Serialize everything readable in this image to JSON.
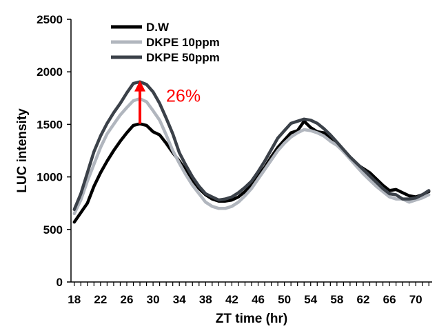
{
  "chart_data": {
    "type": "line",
    "title": "",
    "xlabel": "ZT time (hr)",
    "ylabel": "LUC intensity",
    "xlim": [
      17.5,
      72.5
    ],
    "ylim": [
      0,
      2500
    ],
    "x_ticks": [
      18,
      22,
      26,
      30,
      34,
      38,
      42,
      46,
      50,
      54,
      58,
      62,
      66,
      70
    ],
    "y_ticks": [
      0,
      500,
      1000,
      1500,
      2000,
      2500
    ],
    "grid": false,
    "legend_position": "top-left",
    "x": [
      18,
      19,
      20,
      21,
      22,
      23,
      24,
      25,
      26,
      27,
      28,
      29,
      30,
      31,
      32,
      33,
      34,
      35,
      36,
      37,
      38,
      39,
      40,
      41,
      42,
      43,
      44,
      45,
      46,
      47,
      48,
      49,
      50,
      51,
      52,
      53,
      54,
      55,
      56,
      57,
      58,
      59,
      60,
      61,
      62,
      63,
      64,
      65,
      66,
      67,
      68,
      69,
      70,
      71,
      72
    ],
    "series": [
      {
        "name": "D.W",
        "color": "#000000",
        "values": [
          570,
          660,
          750,
          910,
          1040,
          1150,
          1250,
          1340,
          1420,
          1490,
          1505,
          1490,
          1430,
          1400,
          1320,
          1230,
          1150,
          1060,
          970,
          890,
          830,
          790,
          770,
          770,
          780,
          810,
          860,
          920,
          1010,
          1090,
          1190,
          1280,
          1350,
          1420,
          1440,
          1530,
          1470,
          1430,
          1420,
          1370,
          1310,
          1240,
          1180,
          1120,
          1080,
          1040,
          980,
          920,
          870,
          880,
          850,
          820,
          810,
          830,
          860
        ]
      },
      {
        "name": "DKPE 10ppm",
        "color": "#b1b6be",
        "values": [
          650,
          780,
          960,
          1120,
          1280,
          1410,
          1500,
          1590,
          1660,
          1725,
          1745,
          1715,
          1630,
          1540,
          1400,
          1250,
          1130,
          1020,
          920,
          840,
          760,
          720,
          700,
          700,
          720,
          760,
          820,
          890,
          980,
          1070,
          1160,
          1250,
          1320,
          1380,
          1420,
          1450,
          1440,
          1420,
          1390,
          1340,
          1300,
          1240,
          1170,
          1100,
          1030,
          970,
          910,
          860,
          810,
          790,
          790,
          760,
          780,
          800,
          830
        ]
      },
      {
        "name": "DKPE 50ppm",
        "color": "#3b4149",
        "values": [
          690,
          840,
          1040,
          1240,
          1390,
          1510,
          1610,
          1700,
          1800,
          1890,
          1905,
          1880,
          1810,
          1700,
          1560,
          1410,
          1230,
          1110,
          1000,
          910,
          840,
          810,
          780,
          790,
          810,
          850,
          900,
          960,
          1050,
          1150,
          1260,
          1370,
          1440,
          1510,
          1530,
          1550,
          1540,
          1510,
          1460,
          1400,
          1330,
          1260,
          1190,
          1130,
          1070,
          1010,
          950,
          890,
          840,
          830,
          790,
          790,
          800,
          830,
          870
        ]
      }
    ],
    "annotation": {
      "text": "26%",
      "color": "#ff0000",
      "arrow_x": 28,
      "arrow_from": 1505,
      "arrow_to": 1905
    }
  }
}
